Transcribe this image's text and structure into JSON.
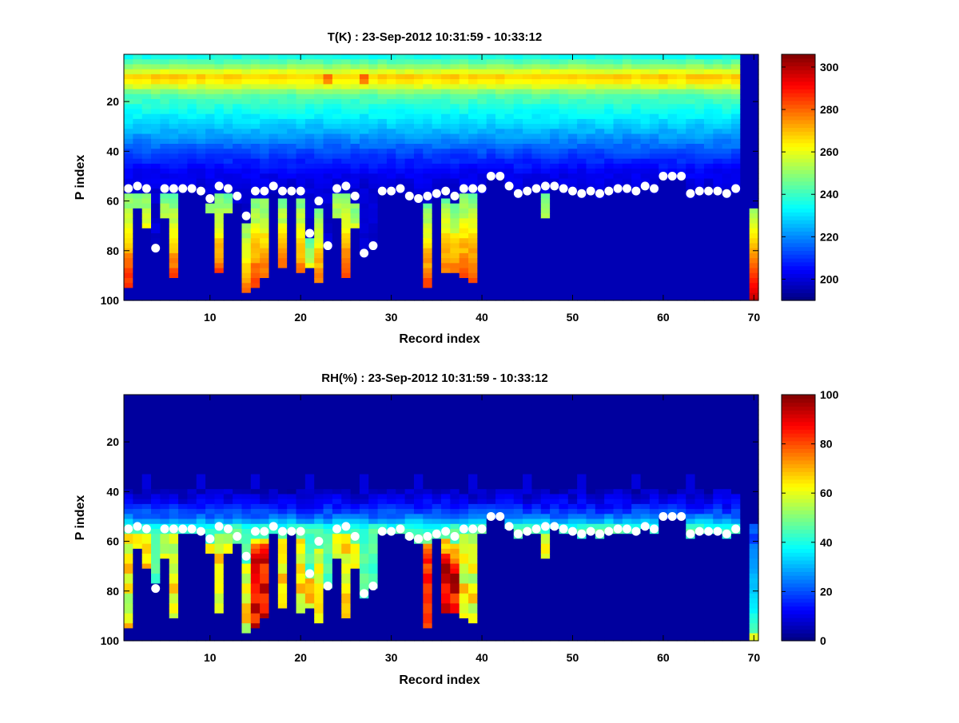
{
  "chart_data": [
    {
      "type": "heatmap",
      "title": "T(K) : 23-Sep-2012 10:31:59 - 10:33:12",
      "xlabel": "Record index",
      "ylabel": "P index",
      "x_ticks": [
        10,
        20,
        30,
        40,
        50,
        60,
        70
      ],
      "y_ticks": [
        20,
        40,
        60,
        80,
        100
      ],
      "xlim": [
        0.5,
        70.5
      ],
      "ylim": [
        1,
        100
      ],
      "y_reversed": true,
      "colormap": "jet",
      "colorbar": {
        "min": 190,
        "max": 306,
        "ticks": [
          200,
          220,
          240,
          260,
          280,
          300
        ]
      },
      "grid": false
    },
    {
      "type": "heatmap",
      "title": "RH(%) : 23-Sep-2012 10:31:59 - 10:33:12",
      "xlabel": "Record index",
      "ylabel": "P index",
      "x_ticks": [
        10,
        20,
        30,
        40,
        50,
        60,
        70
      ],
      "y_ticks": [
        20,
        40,
        60,
        80,
        100
      ],
      "xlim": [
        0.5,
        70.5
      ],
      "ylim": [
        1,
        100
      ],
      "y_reversed": true,
      "colormap": "jet",
      "colorbar": {
        "min": 0,
        "max": 100,
        "ticks": [
          0,
          20,
          40,
          60,
          80,
          100
        ]
      },
      "grid": false
    }
  ],
  "records": {
    "surface_p": [
      55,
      54,
      55,
      79,
      55,
      55,
      55,
      55,
      56,
      59,
      54,
      55,
      58,
      66,
      56,
      56,
      54,
      56,
      56,
      56,
      73,
      60,
      78,
      55,
      54,
      58,
      81,
      78,
      56,
      56,
      55,
      58,
      59,
      58,
      57,
      56,
      58,
      55,
      55,
      55,
      50,
      50,
      54,
      57,
      56,
      55,
      54,
      54,
      55,
      56,
      57,
      56,
      57,
      56,
      55,
      55,
      56,
      54,
      55,
      50,
      50,
      50,
      57,
      56,
      56,
      56,
      57,
      55,
      1,
      1
    ],
    "data_bottom_p": [
      93,
      62,
      69,
      76,
      65,
      90,
      55,
      55,
      55,
      64,
      87,
      63,
      60,
      96,
      93,
      89,
      55,
      85,
      55,
      88,
      85,
      91,
      78,
      65,
      90,
      70,
      81,
      78,
      55,
      55,
      55,
      58,
      59,
      94,
      57,
      88,
      87,
      90,
      92,
      55,
      50,
      50,
      54,
      57,
      56,
      55,
      65,
      54,
      55,
      56,
      57,
      56,
      57,
      56,
      55,
      55,
      56,
      54,
      55,
      50,
      50,
      50,
      57,
      56,
      56,
      56,
      57,
      55,
      1,
      97
    ],
    "marker_p": [
      55,
      54,
      55,
      79,
      55,
      55,
      55,
      55,
      56,
      59,
      54,
      55,
      58,
      66,
      56,
      56,
      54,
      56,
      56,
      56,
      73,
      60,
      78,
      55,
      54,
      58,
      81,
      78,
      56,
      56,
      55,
      58,
      59,
      58,
      57,
      56,
      58,
      55,
      55,
      55,
      50,
      50,
      54,
      57,
      56,
      55,
      54,
      54,
      55,
      56,
      57,
      56,
      57,
      56,
      55,
      55,
      56,
      54,
      55,
      50,
      50,
      50,
      57,
      56,
      56,
      56,
      57,
      55,
      null,
      null
    ]
  }
}
